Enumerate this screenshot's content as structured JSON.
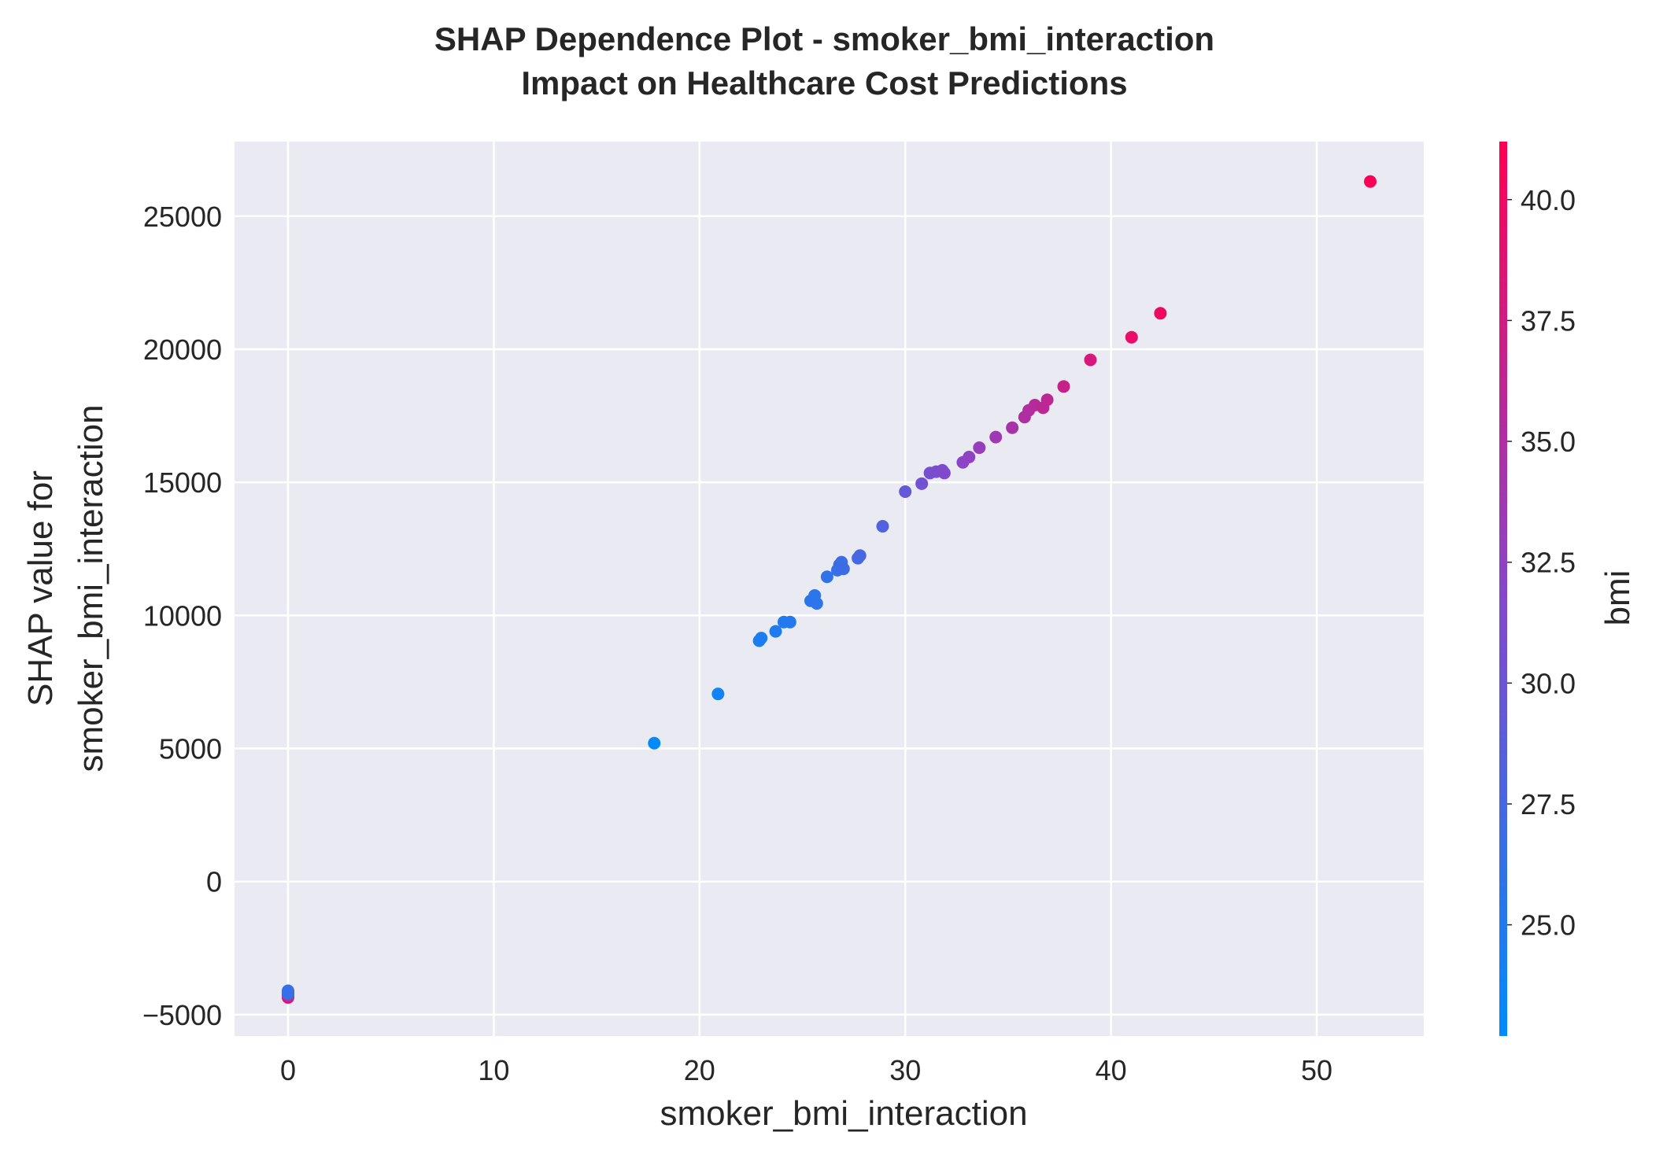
{
  "title_line1": "SHAP Dependence Plot - smoker_bmi_interaction",
  "title_line2": "Impact on Healthcare Cost Predictions",
  "colors": {
    "background": "#eaeaf2",
    "grid": "#ffffff",
    "low": "#008bfb",
    "high": "#ff0052"
  },
  "chart_data": {
    "type": "scatter",
    "title": "SHAP Dependence Plot - smoker_bmi_interaction\nImpact on Healthcare Cost Predictions",
    "xlabel": "smoker_bmi_interaction",
    "ylabel_lines": [
      "SHAP value for",
      "smoker_bmi_interaction"
    ],
    "xlim": [
      -2.6,
      55.2
    ],
    "ylim": [
      -5800,
      27800
    ],
    "xticks": [
      0,
      10,
      20,
      30,
      40,
      50
    ],
    "xtick_labels": [
      "0",
      "10",
      "20",
      "30",
      "40",
      "50"
    ],
    "yticks": [
      -5000,
      0,
      5000,
      10000,
      15000,
      20000,
      25000
    ],
    "ytick_labels": [
      "−5000",
      "0",
      "5000",
      "10000",
      "15000",
      "20000",
      "25000"
    ],
    "grid": true,
    "colorbar": {
      "label": "bmi",
      "range": [
        22.7,
        41.2
      ],
      "ticks": [
        25.0,
        27.5,
        30.0,
        32.5,
        35.0,
        37.5,
        40.0
      ],
      "tick_labels": [
        "25.0",
        "27.5",
        "30.0",
        "32.5",
        "35.0",
        "37.5",
        "40.0"
      ],
      "colormap": "blue-to-red"
    },
    "points": [
      {
        "x": 0,
        "y": -4350,
        "c": 40.5
      },
      {
        "x": 0,
        "y": -4300,
        "c": 37.0
      },
      {
        "x": 0,
        "y": -4250,
        "c": 33.0
      },
      {
        "x": 0,
        "y": -4200,
        "c": 28.0
      },
      {
        "x": 0,
        "y": -4150,
        "c": 25.0
      },
      {
        "x": 0,
        "y": -4100,
        "c": 26.5
      },
      {
        "x": 17.8,
        "y": 5200,
        "c": 22.9
      },
      {
        "x": 20.9,
        "y": 7050,
        "c": 23.8
      },
      {
        "x": 22.9,
        "y": 9050,
        "c": 24.5
      },
      {
        "x": 23.0,
        "y": 9150,
        "c": 24.6
      },
      {
        "x": 23.7,
        "y": 9400,
        "c": 24.8
      },
      {
        "x": 24.1,
        "y": 9750,
        "c": 25.0
      },
      {
        "x": 24.4,
        "y": 9750,
        "c": 25.1
      },
      {
        "x": 25.4,
        "y": 10550,
        "c": 25.6
      },
      {
        "x": 25.6,
        "y": 10750,
        "c": 25.7
      },
      {
        "x": 25.7,
        "y": 10450,
        "c": 25.8
      },
      {
        "x": 26.2,
        "y": 11450,
        "c": 26.1
      },
      {
        "x": 26.7,
        "y": 11700,
        "c": 26.5
      },
      {
        "x": 26.8,
        "y": 11900,
        "c": 26.6
      },
      {
        "x": 26.9,
        "y": 12000,
        "c": 26.7
      },
      {
        "x": 27.0,
        "y": 11750,
        "c": 26.8
      },
      {
        "x": 27.7,
        "y": 12150,
        "c": 27.3
      },
      {
        "x": 27.8,
        "y": 12250,
        "c": 27.4
      },
      {
        "x": 28.9,
        "y": 13350,
        "c": 28.3
      },
      {
        "x": 30.0,
        "y": 14650,
        "c": 29.6
      },
      {
        "x": 30.8,
        "y": 14950,
        "c": 30.3
      },
      {
        "x": 31.2,
        "y": 15350,
        "c": 30.7
      },
      {
        "x": 31.5,
        "y": 15400,
        "c": 31.0
      },
      {
        "x": 31.8,
        "y": 15450,
        "c": 31.3
      },
      {
        "x": 31.9,
        "y": 15350,
        "c": 31.4
      },
      {
        "x": 32.8,
        "y": 15750,
        "c": 32.2
      },
      {
        "x": 33.1,
        "y": 15950,
        "c": 32.5
      },
      {
        "x": 33.6,
        "y": 16300,
        "c": 33.0
      },
      {
        "x": 34.4,
        "y": 16700,
        "c": 33.7
      },
      {
        "x": 35.2,
        "y": 17050,
        "c": 34.4
      },
      {
        "x": 35.8,
        "y": 17450,
        "c": 35.0
      },
      {
        "x": 36.0,
        "y": 17700,
        "c": 35.2
      },
      {
        "x": 36.3,
        "y": 17900,
        "c": 35.5
      },
      {
        "x": 36.7,
        "y": 17800,
        "c": 35.9
      },
      {
        "x": 36.9,
        "y": 18100,
        "c": 36.1
      },
      {
        "x": 37.7,
        "y": 18600,
        "c": 36.8
      },
      {
        "x": 39.0,
        "y": 19600,
        "c": 38.0
      },
      {
        "x": 41.0,
        "y": 20450,
        "c": 39.4
      },
      {
        "x": 42.4,
        "y": 21350,
        "c": 40.0
      },
      {
        "x": 52.6,
        "y": 26300,
        "c": 40.8
      }
    ]
  }
}
